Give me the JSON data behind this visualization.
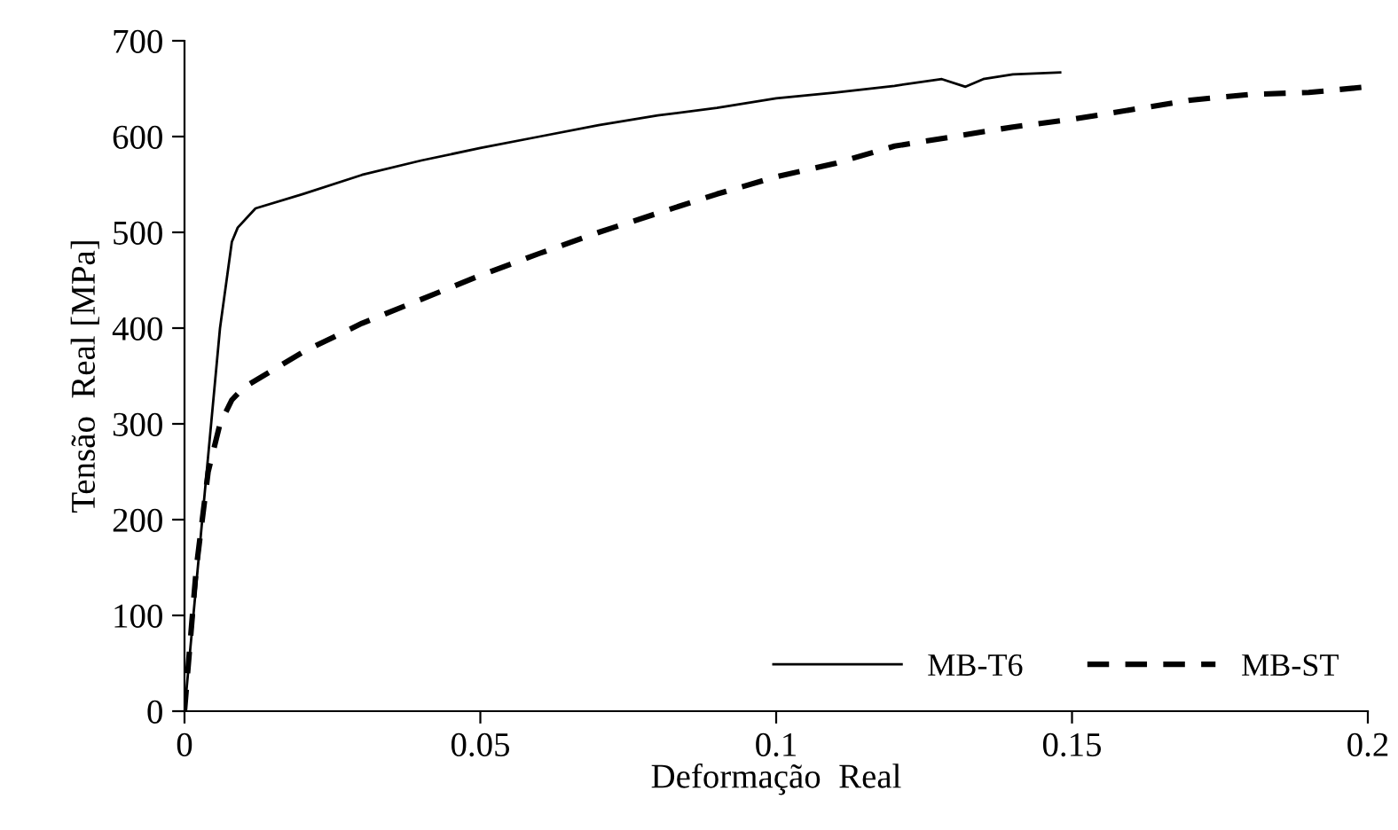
{
  "chart_data": {
    "type": "line",
    "xlabel": "Deformação  Real",
    "ylabel": "Tensão  Real [MPa]",
    "xlim": [
      0,
      0.2
    ],
    "xticks": [
      0,
      0.05,
      0.1,
      0.15,
      0.2
    ],
    "ylim": [
      0,
      700
    ],
    "yticks": [
      0,
      100,
      200,
      300,
      400,
      500,
      600,
      700
    ],
    "grid": false,
    "legend": "bottom right",
    "series": [
      {
        "name": "MB-T6",
        "color": "#000000",
        "line_style": "solid",
        "x": [
          0,
          0.003,
          0.006,
          0.008,
          0.009,
          0.012,
          0.02,
          0.03,
          0.04,
          0.05,
          0.06,
          0.07,
          0.08,
          0.09,
          0.1,
          0.11,
          0.12,
          0.128,
          0.132,
          0.135,
          0.14,
          0.148
        ],
        "values": [
          0,
          200,
          400,
          490,
          505,
          525,
          540,
          560,
          575,
          588,
          600,
          612,
          622,
          630,
          640,
          646,
          653,
          660,
          652,
          660,
          665,
          667
        ]
      },
      {
        "name": "MB-ST",
        "color": "#000000",
        "line_style": "dashed",
        "x": [
          0,
          0.002,
          0.004,
          0.006,
          0.008,
          0.01,
          0.02,
          0.03,
          0.04,
          0.05,
          0.06,
          0.07,
          0.08,
          0.09,
          0.1,
          0.11,
          0.12,
          0.13,
          0.14,
          0.15,
          0.16,
          0.17,
          0.18,
          0.19,
          0.2
        ],
        "values": [
          0,
          150,
          250,
          300,
          325,
          338,
          375,
          405,
          430,
          455,
          478,
          500,
          520,
          540,
          558,
          572,
          590,
          600,
          610,
          618,
          628,
          638,
          644,
          646,
          652
        ]
      }
    ]
  }
}
